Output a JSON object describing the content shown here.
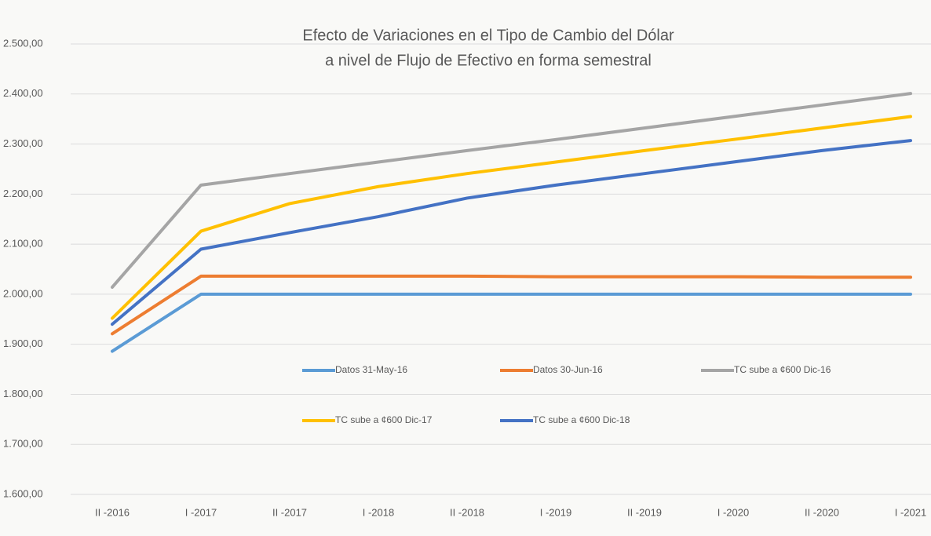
{
  "chart_data": {
    "type": "line",
    "title": [
      "Efecto de Variaciones en el Tipo de Cambio del Dólar",
      "a nivel de Flujo de Efectivo en forma semestral"
    ],
    "categories": [
      "II -2016",
      "I -2017",
      "II -2017",
      "I -2018",
      "II -2018",
      "I -2019",
      "II -2019",
      "I -2020",
      "II -2020",
      "I -2021"
    ],
    "series": [
      {
        "name": "Datos 31-May-16",
        "color": "#5b9bd5",
        "values": [
          1886,
          2000,
          2000,
          2000,
          2000,
          2000,
          2000,
          2000,
          2000,
          2000
        ]
      },
      {
        "name": "Datos 30-Jun-16",
        "color": "#ed7d31",
        "values": [
          1921,
          2036,
          2036,
          2036,
          2036,
          2035,
          2035,
          2035,
          2034,
          2034
        ]
      },
      {
        "name": "TC sube a ¢600 Dic-16",
        "color": "#a5a5a5",
        "values": [
          2014,
          2218,
          2241,
          2264,
          2287,
          2309,
          2332,
          2355,
          2378,
          2401
        ]
      },
      {
        "name": "TC sube a ¢600 Dic-17",
        "color": "#ffc000",
        "values": [
          1952,
          2126,
          2181,
          2215,
          2241,
          2264,
          2287,
          2309,
          2332,
          2355
        ]
      },
      {
        "name": "TC sube a ¢600 Dic-18",
        "color": "#4472c4",
        "values": [
          1940,
          2090,
          2123,
          2155,
          2192,
          2218,
          2241,
          2264,
          2287,
          2307
        ]
      }
    ],
    "ylim": [
      1600,
      2500
    ],
    "yticks": [
      {
        "value": 1600,
        "label": "1.600,00"
      },
      {
        "value": 1700,
        "label": "1.700,00"
      },
      {
        "value": 1800,
        "label": "1.800,00"
      },
      {
        "value": 1900,
        "label": "1.900,00"
      },
      {
        "value": 2000,
        "label": "2.000,00"
      },
      {
        "value": 2100,
        "label": "2.100,00"
      },
      {
        "value": 2200,
        "label": "2.200,00"
      },
      {
        "value": 2300,
        "label": "2.300,00"
      },
      {
        "value": 2400,
        "label": "2.400,00"
      },
      {
        "value": 2500,
        "label": "2.500,00"
      }
    ],
    "grid": true
  }
}
